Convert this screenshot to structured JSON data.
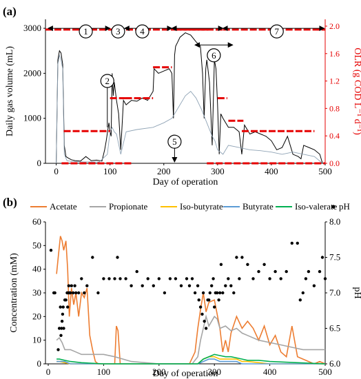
{
  "chart_data": [
    {
      "panel_label": "(a)",
      "type": "line",
      "xlabel": "Day of operation",
      "ylabel": "Daily gas volume (mL)",
      "y2label": "OLR (g COD L⁻¹ d⁻¹)",
      "xlim": [
        -20,
        500
      ],
      "ylim": [
        0,
        3200
      ],
      "y2lim": [
        0,
        2.1
      ],
      "x_ticks": [
        0,
        100,
        200,
        300,
        400,
        500
      ],
      "y_ticks": [
        0,
        1000,
        2000,
        3000
      ],
      "y2_ticks": [
        "0.0",
        "0.4",
        "0.8",
        "1.2",
        "1.6",
        "2.0"
      ],
      "right_axis_color": "#e60000",
      "series": [
        {
          "color": "#000000",
          "x": [
            0,
            3,
            6,
            9,
            12,
            15,
            18,
            22,
            28,
            35,
            45,
            55,
            65,
            75,
            85,
            90,
            93,
            96,
            98,
            100,
            102,
            104,
            106,
            108,
            112,
            116,
            120,
            125,
            130,
            135,
            140,
            150,
            160,
            170,
            180,
            182,
            190,
            200,
            210,
            215,
            218,
            220,
            222,
            226,
            230,
            240,
            250,
            260,
            268,
            272,
            275,
            278,
            280,
            282,
            285,
            290,
            294,
            297,
            300,
            303,
            306,
            310,
            315,
            320,
            330,
            340,
            345,
            350,
            360,
            370,
            380,
            390,
            400,
            410,
            420,
            430,
            440,
            450,
            455,
            460,
            470,
            480,
            490,
            495
          ],
          "y": [
            0,
            2300,
            2500,
            2450,
            2200,
            400,
            150,
            120,
            80,
            60,
            50,
            150,
            60,
            70,
            50,
            300,
            500,
            750,
            900,
            700,
            600,
            2000,
            1500,
            1800,
            1400,
            1100,
            300,
            1400,
            1300,
            1350,
            1400,
            1380,
            1450,
            1400,
            1600,
            2100,
            2000,
            2050,
            2100,
            2000,
            1000,
            2400,
            2600,
            2700,
            2800,
            2900,
            2850,
            2700,
            2600,
            2000,
            1000,
            2100,
            2300,
            2100,
            1800,
            400,
            2300,
            2100,
            1300,
            200,
            1100,
            1000,
            900,
            800,
            800,
            700,
            200,
            850,
            650,
            700,
            650,
            600,
            500,
            300,
            350,
            600,
            200,
            150,
            100,
            400,
            350,
            300,
            200,
            0
          ]
        },
        {
          "color": "#8fa3b5",
          "x": [
            0,
            3,
            6,
            9,
            12,
            15,
            20,
            30,
            50,
            80,
            95,
            100,
            104,
            108,
            112,
            120,
            130,
            150,
            180,
            200,
            215,
            220,
            240,
            250,
            260,
            270,
            280,
            290,
            295,
            300,
            310,
            320,
            340,
            360,
            380,
            400,
            420,
            440,
            460,
            480,
            495
          ],
          "y": [
            0,
            2200,
            2400,
            2300,
            2100,
            200,
            60,
            40,
            30,
            30,
            200,
            700,
            800,
            700,
            650,
            200,
            700,
            750,
            800,
            900,
            1000,
            1100,
            1500,
            1600,
            1450,
            1200,
            900,
            600,
            500,
            300,
            200,
            400,
            350,
            300,
            280,
            250,
            200,
            250,
            200,
            150,
            0
          ]
        }
      ],
      "olr_segments": [
        {
          "x": [
            -20,
            310
          ],
          "y": 1.95
        },
        {
          "x": [
            310,
            500
          ],
          "y": 1.95
        },
        {
          "x": [
            14,
            100
          ],
          "y": 0.47
        },
        {
          "x": [
            100,
            128
          ],
          "y": 0.95
        },
        {
          "x": [
            128,
            180
          ],
          "y": 0.95
        },
        {
          "x": [
            180,
            215
          ],
          "y": 1.4
        },
        {
          "x": [
            220,
            285
          ],
          "y": 1.95
        },
        {
          "x": [
            300,
            318
          ],
          "y": 0.95
        },
        {
          "x": [
            320,
            348
          ],
          "y": 0.62
        },
        {
          "x": [
            345,
            480
          ],
          "y": 0.47
        },
        {
          "x": [
            10,
            140
          ],
          "y": 0.0
        },
        {
          "x": [
            280,
            500
          ],
          "y": 0.0
        }
      ],
      "annotations": [
        {
          "label": "1",
          "x": 55,
          "y": 2930
        },
        {
          "label": "2",
          "x": 95,
          "y": 1830
        },
        {
          "label": "3",
          "x": 115,
          "y": 2930
        },
        {
          "label": "4",
          "x": 160,
          "y": 2930
        },
        {
          "label": "5",
          "x": 220,
          "y": 480
        },
        {
          "label": "6",
          "x": 293,
          "y": 2400
        },
        {
          "label": "7",
          "x": 410,
          "y": 2930
        }
      ]
    },
    {
      "panel_label": "(b)",
      "type": "line",
      "xlabel": "Day of operation",
      "ylabel": "Concentration (mM)",
      "y2label": "pH",
      "xlim": [
        -5,
        500
      ],
      "ylim": [
        0,
        60
      ],
      "y2lim": [
        6.0,
        8.0
      ],
      "x_ticks": [
        0,
        100,
        200,
        300,
        400,
        500
      ],
      "y_ticks": [
        0,
        10,
        20,
        30,
        40,
        50,
        60
      ],
      "y2_ticks": [
        "6.0",
        "6.5",
        "7.0",
        "7.5",
        "8.0"
      ],
      "legend_position": "top",
      "series": [
        {
          "name": "Acetate",
          "color": "#ed7d31",
          "x": [
            15,
            18,
            22,
            25,
            28,
            32,
            35,
            38,
            42,
            46,
            50,
            55,
            60,
            65,
            70,
            75,
            80,
            85,
            90,
            120,
            123,
            126,
            130,
            200,
            220,
            240,
            255,
            265,
            270,
            275,
            280,
            285,
            290,
            300,
            310,
            315,
            320,
            325,
            330,
            340,
            350,
            360,
            370,
            380,
            390,
            400,
            410,
            420,
            430,
            440,
            450,
            460,
            470,
            480,
            490,
            500
          ],
          "y": [
            38,
            45,
            54,
            52,
            48,
            52,
            40,
            20,
            32,
            25,
            30,
            20,
            30,
            28,
            32,
            12,
            6,
            1,
            0,
            0,
            16,
            14,
            0,
            0,
            0,
            0,
            0,
            5,
            15,
            23,
            30,
            22,
            26,
            27,
            15,
            5,
            10,
            5,
            13,
            20,
            15,
            18,
            15,
            10,
            16,
            8,
            12,
            5,
            3,
            16,
            3,
            2,
            1,
            0,
            1,
            0
          ]
        },
        {
          "name": "Propionate",
          "color": "#a5a5a5",
          "x": [
            15,
            20,
            25,
            30,
            40,
            50,
            60,
            70,
            80,
            90,
            100,
            120,
            150,
            200,
            260,
            270,
            275,
            280,
            285,
            290,
            295,
            300,
            305,
            310,
            320,
            330,
            340,
            350,
            360,
            380,
            400,
            420,
            440,
            460,
            480,
            500
          ],
          "y": [
            10,
            11,
            9,
            6,
            6,
            5,
            4,
            4,
            4,
            4,
            4,
            3,
            1,
            0,
            0,
            3,
            10,
            15,
            20,
            16,
            18,
            20,
            19,
            15,
            16,
            14,
            15,
            13,
            12,
            10,
            9,
            8,
            7,
            6,
            6,
            6
          ]
        },
        {
          "name": "Iso-butyrate",
          "color": "#ffc000",
          "x": [
            15,
            20,
            30,
            40,
            100,
            200,
            270,
            280,
            290,
            300,
            310,
            320,
            330,
            340,
            350,
            360,
            400,
            450,
            500
          ],
          "y": [
            1,
            1,
            0.5,
            0,
            0,
            0,
            0,
            2,
            3,
            3,
            2,
            2,
            2,
            2,
            1,
            1,
            0,
            0,
            0
          ]
        },
        {
          "name": "Butyrate",
          "color": "#5b9bd5",
          "x": [
            15,
            20,
            30,
            40,
            100,
            200,
            270,
            280,
            290,
            300,
            310,
            320,
            330,
            340,
            350,
            360,
            400,
            450,
            500
          ],
          "y": [
            1,
            1,
            1,
            0,
            0,
            0,
            0,
            1,
            2,
            2,
            1,
            1,
            1,
            1,
            0,
            0,
            0,
            0,
            0
          ]
        },
        {
          "name": "Iso-valerate",
          "color": "#00b050",
          "x": [
            15,
            20,
            30,
            40,
            60,
            100,
            200,
            270,
            280,
            290,
            300,
            310,
            320,
            330,
            340,
            350,
            360,
            380,
            400,
            450,
            500
          ],
          "y": [
            2,
            2,
            1.5,
            1,
            0.5,
            0,
            0,
            0,
            2,
            3,
            4,
            3.5,
            3,
            3,
            2.5,
            2,
            1.5,
            1.5,
            1,
            0.5,
            0
          ]
        }
      ],
      "ph_points": {
        "name": "pH",
        "x": [
          5,
          10,
          12,
          18,
          20,
          22,
          23,
          24,
          25,
          26,
          27,
          28,
          30,
          32,
          34,
          35,
          36,
          37,
          38,
          40,
          42,
          45,
          48,
          50,
          55,
          60,
          65,
          70,
          80,
          90,
          100,
          110,
          120,
          125,
          130,
          140,
          150,
          160,
          170,
          180,
          190,
          200,
          210,
          220,
          230,
          240,
          250,
          255,
          260,
          265,
          270,
          272,
          275,
          278,
          280,
          282,
          285,
          288,
          290,
          292,
          295,
          298,
          300,
          302,
          305,
          308,
          310,
          312,
          315,
          320,
          325,
          330,
          335,
          340,
          345,
          350,
          360,
          370,
          380,
          390,
          400,
          410,
          420,
          430,
          440,
          450,
          455,
          460,
          465,
          470,
          480,
          490,
          495,
          500
        ],
        "y": [
          7.6,
          7.0,
          7.0,
          6.2,
          6.5,
          6.8,
          6.4,
          6.5,
          6.6,
          6.7,
          6.8,
          6.5,
          6.9,
          6.9,
          7.0,
          6.8,
          7.0,
          7.1,
          7.0,
          7.0,
          7.1,
          7.0,
          7.1,
          7.0,
          7.0,
          7.2,
          7.0,
          7.1,
          7.5,
          7.0,
          7.2,
          7.2,
          7.2,
          7.5,
          7.2,
          7.2,
          7.1,
          7.3,
          7.1,
          7.2,
          7.1,
          7.2,
          7.0,
          7.2,
          7.2,
          7.1,
          7.2,
          7.1,
          7.2,
          7.0,
          7.1,
          6.9,
          6.8,
          6.7,
          7.0,
          6.6,
          6.5,
          6.9,
          6.9,
          7.0,
          7.1,
          7.2,
          6.8,
          7.0,
          7.0,
          6.9,
          7.0,
          7.4,
          7.0,
          7.1,
          7.2,
          7.1,
          7.0,
          7.5,
          7.2,
          7.5,
          7.4,
          7.2,
          7.3,
          7.4,
          7.2,
          7.3,
          7.2,
          7.3,
          7.7,
          7.7,
          6.9,
          7.0,
          7.2,
          7.3,
          7.1,
          7.3,
          7.5,
          7.2
        ]
      }
    }
  ]
}
